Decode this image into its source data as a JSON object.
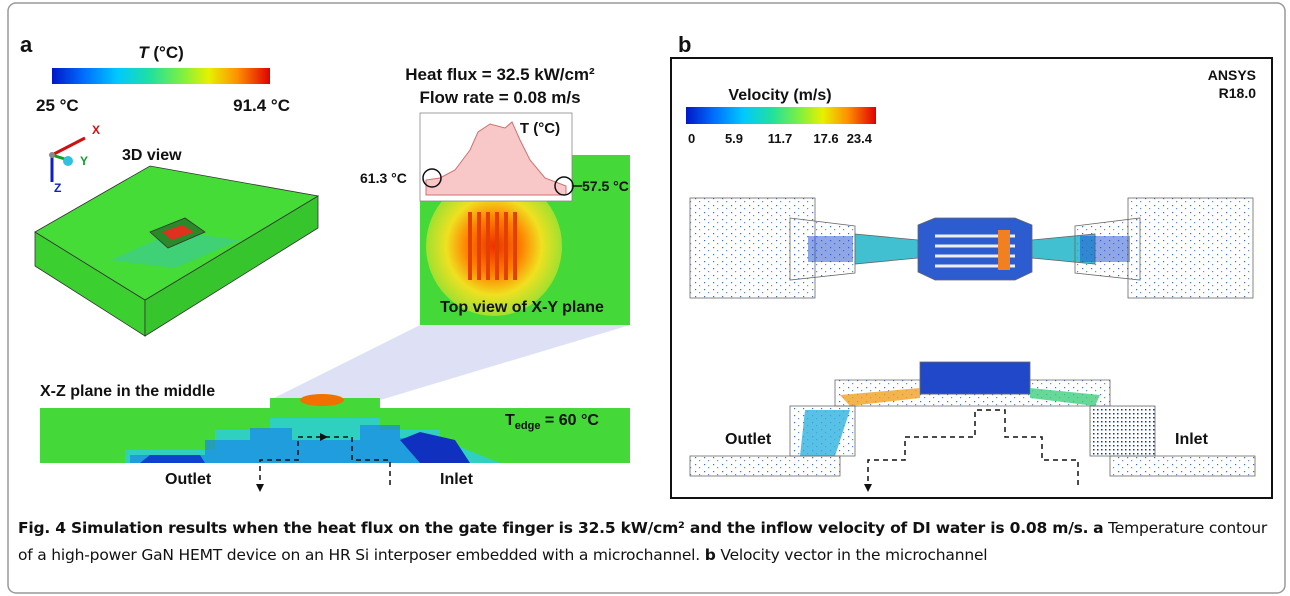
{
  "panel_a": {
    "label": "a",
    "colorbar": {
      "title_symbol": "T",
      "title_unit": "(°C)",
      "min_label": "25 °C",
      "max_label": "91.4 °C"
    },
    "axes": {
      "x": "X",
      "y": "Y",
      "z": "Z"
    },
    "view_3d_label": "3D view",
    "conditions": [
      "Heat flux = 32.5 kW/cm²",
      "Flow rate = 0.08 m/s"
    ],
    "inset_title": "T (°C)",
    "probe_left": "61.3 °C",
    "probe_right": "57.5 °C",
    "top_view_label": "Top view of X-Y plane",
    "xz_label": "X-Z plane in the middle",
    "t_edge": {
      "symbol": "T",
      "subscript": "edge",
      "rest": " = 60 °C"
    },
    "outlet": "Outlet",
    "inlet": "Inlet"
  },
  "panel_b": {
    "label": "b",
    "software": [
      "ANSYS",
      "R18.0"
    ],
    "colorbar": {
      "title": "Velocity (m/s)",
      "ticks": [
        "0",
        "5.9",
        "11.7",
        "17.6",
        "23.4"
      ]
    },
    "outlet": "Outlet",
    "inlet": "Inlet"
  },
  "caption": {
    "title": "Fig. 4 Simulation results when the heat flux on the gate finger is 32.5 kW/cm² and the inflow velocity of DI water is 0.08 m/s.",
    "parts": [
      {
        "label": "a",
        "text": "Temperature contour of a high-power GaN HEMT device on an HR Si interposer embedded with a microchannel."
      },
      {
        "label": "b",
        "text": "Velocity vector in the microchannel"
      }
    ]
  }
}
